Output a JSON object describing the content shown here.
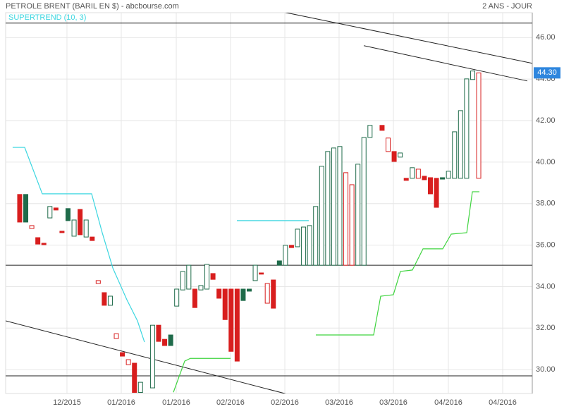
{
  "chart_data": {
    "type": "candlestick",
    "title": "PETROLE BRENT (BARIL EN $) - abcbourse.com",
    "period": "2 ANS - JOUR",
    "grid": true,
    "up_color": "#1f6b4a",
    "down_color": "#d81e1e",
    "xlim": [
      -2.33,
      84.87
    ],
    "xticks": [
      {
        "value": 7.82,
        "label": "12/2015"
      },
      {
        "value": 16.81,
        "label": "01/2016"
      },
      {
        "value": 25.92,
        "label": "01/2016"
      },
      {
        "value": 34.9,
        "label": "02/2016"
      },
      {
        "value": 43.9,
        "label": "02/2016"
      },
      {
        "value": 52.88,
        "label": "03/2016"
      },
      {
        "value": 61.87,
        "label": "03/2016"
      },
      {
        "value": 70.98,
        "label": "04/2016"
      },
      {
        "value": 79.97,
        "label": "04/2016"
      }
    ],
    "ylim": [
      28.85,
      47.2
    ],
    "yticks": [
      {
        "value": 30,
        "label": "30.00"
      },
      {
        "value": 32,
        "label": "32.00"
      },
      {
        "value": 34,
        "label": "34.00"
      },
      {
        "value": 36,
        "label": "36.00"
      },
      {
        "value": 38,
        "label": "38.00"
      },
      {
        "value": 40,
        "label": "40.00"
      },
      {
        "value": 42,
        "label": "42.00"
      },
      {
        "value": 44,
        "label": "44.00"
      },
      {
        "value": 46,
        "label": "46.00"
      }
    ],
    "x": [
      0,
      1,
      2,
      3,
      4,
      5,
      6,
      7,
      8,
      9,
      10,
      11,
      12,
      13,
      14,
      15,
      16,
      17,
      18,
      19,
      20,
      22,
      23,
      24,
      25,
      26,
      27,
      28,
      29,
      30,
      31,
      32,
      33,
      34,
      35,
      36,
      37,
      38,
      39,
      40,
      41,
      42,
      43,
      44,
      45,
      46,
      47,
      48,
      49,
      50,
      51,
      52,
      53,
      54,
      55,
      56,
      57,
      58,
      60,
      61,
      62,
      63,
      64,
      65,
      66,
      67,
      68,
      69,
      70,
      71,
      72,
      73,
      74,
      75,
      76
    ],
    "open": [
      38.44,
      38.44,
      36.8,
      36.36,
      36.09,
      37.31,
      37.79,
      36.67,
      37.76,
      36.43,
      37.72,
      36.39,
      36.39,
      34.15,
      33.71,
      33.1,
      31.5,
      30.82,
      30.24,
      30.31,
      28.9,
      29.12,
      32.14,
      31.46,
      31.67,
      33.06,
      33.84,
      33.88,
      33.88,
      33.84,
      33.88,
      34.63,
      33.88,
      33.88,
      33.88,
      33.88,
      33.88,
      33.88,
      34.29,
      34.66,
      33.2,
      34.32,
      35.24,
      35.03,
      35.99,
      35.92,
      35.03,
      35.03,
      35.03,
      35.03,
      35.03,
      35.03,
      35.03,
      35.03,
      35.03,
      35.03,
      35.03,
      41.19,
      41.77,
      40.51,
      40.51,
      40.24,
      39.22,
      39.22,
      39.22,
      39.32,
      39.25,
      39.22,
      39.25,
      39.22,
      39.22,
      39.22,
      39.22,
      43.98,
      39.22
    ],
    "close": [
      37.11,
      37.11,
      36.94,
      36.05,
      36.02,
      37.86,
      37.69,
      36.6,
      37.18,
      37.21,
      36.5,
      37.21,
      36.22,
      34.29,
      33.1,
      33.54,
      31.73,
      30.65,
      30.48,
      28.9,
      29.39,
      32.14,
      31.36,
      31.16,
      31.16,
      33.88,
      34.73,
      35.03,
      32.99,
      34.05,
      35.07,
      34.35,
      33.44,
      32.41,
      30.88,
      30.41,
      33.33,
      33.78,
      35.03,
      34.6,
      34.15,
      32.96,
      35.03,
      35.99,
      35.88,
      36.77,
      36.87,
      36.94,
      37.86,
      39.8,
      40.51,
      40.68,
      40.75,
      39.49,
      38.91,
      39.9,
      41.19,
      41.77,
      41.53,
      41.16,
      40.03,
      40.44,
      39.12,
      39.73,
      39.66,
      39.15,
      38.47,
      37.82,
      39.18,
      39.56,
      41.46,
      42.48,
      44.01,
      44.39,
      44.3
    ],
    "last_value_label": "44.30",
    "indicator": {
      "label": "SUPERTREND (10, 3)",
      "label_color": "#3cd6e0",
      "lines": [
        {
          "color": "#3cd6e0",
          "x": [
            -1.17,
            0.82,
            3.74,
            11.91,
            13.66,
            15.41,
            17.74,
            19.5,
            20.66,
            28,
            35.96,
            47.86
          ],
          "values": [
            40.71,
            40.71,
            38.47,
            38.47,
            36.6,
            34.9,
            33.37,
            32.35,
            31.33,
            null,
            37.18,
            37.18
          ]
        },
        {
          "color": "#3fd43f",
          "x": [
            25.45,
            27.32,
            28.25,
            34.91,
            40,
            49.03,
            58.6,
            59.77,
            61.87,
            63.04,
            65.02,
            66.78,
            70.04,
            71.45,
            74.02,
            74.95,
            76.12
          ],
          "values": [
            28.91,
            30.41,
            30.54,
            30.54,
            null,
            31.67,
            31.67,
            33.54,
            33.61,
            34.73,
            34.8,
            35.82,
            35.82,
            36.53,
            36.6,
            38.57,
            38.57
          ]
        }
      ]
    },
    "trendlines": [
      {
        "x": [
          44.0,
          84.87
        ],
        "y": [
          47.21,
          44.76
        ]
      },
      {
        "x": [
          56.97,
          84.05
        ],
        "y": [
          45.61,
          43.91
        ]
      },
      {
        "x": [
          -2.33,
          44.0
        ],
        "y": [
          32.35,
          28.84
        ]
      },
      {
        "x": [
          -2.33,
          84.87
        ],
        "y": [
          46.7,
          46.7
        ]
      },
      {
        "x": [
          -2.33,
          84.87
        ],
        "y": [
          35.03,
          35.03
        ]
      },
      {
        "x": [
          -2.33,
          84.87
        ],
        "y": [
          29.7,
          29.7
        ]
      }
    ]
  }
}
